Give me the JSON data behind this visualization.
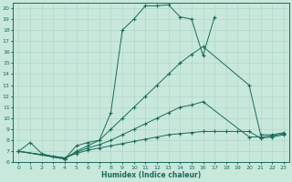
{
  "xlabel": "Humidex (Indice chaleur)",
  "xlim": [
    -0.5,
    23.5
  ],
  "ylim": [
    6,
    20.5
  ],
  "yticks": [
    6,
    7,
    8,
    9,
    10,
    11,
    12,
    13,
    14,
    15,
    16,
    17,
    18,
    19,
    20
  ],
  "xticks": [
    0,
    1,
    2,
    3,
    4,
    5,
    6,
    7,
    8,
    9,
    10,
    11,
    12,
    13,
    14,
    15,
    16,
    17,
    18,
    19,
    20,
    21,
    22,
    23
  ],
  "bg_color": "#c8e8dc",
  "line_color": "#1a6b5a",
  "grid_color": "#b0d8c8",
  "curves": [
    {
      "x": [
        0,
        1,
        2,
        3,
        4,
        5,
        6,
        7,
        8,
        9,
        10,
        11,
        12,
        13,
        14,
        15,
        16,
        17
      ],
      "y": [
        7.0,
        7.8,
        6.8,
        6.5,
        6.3,
        7.5,
        7.8,
        8.0,
        10.5,
        18.0,
        19.0,
        20.2,
        20.2,
        20.3,
        19.2,
        19.0,
        15.7,
        19.2
      ]
    },
    {
      "x": [
        0,
        4,
        5,
        6,
        7,
        8,
        9,
        10,
        11,
        12,
        13,
        14,
        15,
        16,
        20,
        21,
        22,
        23
      ],
      "y": [
        7.0,
        6.3,
        7.0,
        7.5,
        8.0,
        9.0,
        10.0,
        11.0,
        12.0,
        13.0,
        14.0,
        15.0,
        15.8,
        16.5,
        13.0,
        8.5,
        8.5,
        8.7
      ]
    },
    {
      "x": [
        0,
        4,
        5,
        6,
        7,
        8,
        9,
        10,
        11,
        12,
        13,
        14,
        15,
        16,
        20,
        21,
        22,
        23
      ],
      "y": [
        7.0,
        6.4,
        6.9,
        7.3,
        7.6,
        8.0,
        8.5,
        9.0,
        9.5,
        10.0,
        10.5,
        11.0,
        11.2,
        11.5,
        8.3,
        8.3,
        8.4,
        8.6
      ]
    },
    {
      "x": [
        0,
        4,
        5,
        6,
        7,
        8,
        9,
        10,
        11,
        12,
        13,
        14,
        15,
        16,
        17,
        18,
        19,
        20,
        21,
        22,
        23
      ],
      "y": [
        7.0,
        6.4,
        6.8,
        7.1,
        7.3,
        7.5,
        7.7,
        7.9,
        8.1,
        8.3,
        8.5,
        8.6,
        8.7,
        8.8,
        8.8,
        8.8,
        8.8,
        8.8,
        8.2,
        8.3,
        8.5
      ]
    }
  ]
}
